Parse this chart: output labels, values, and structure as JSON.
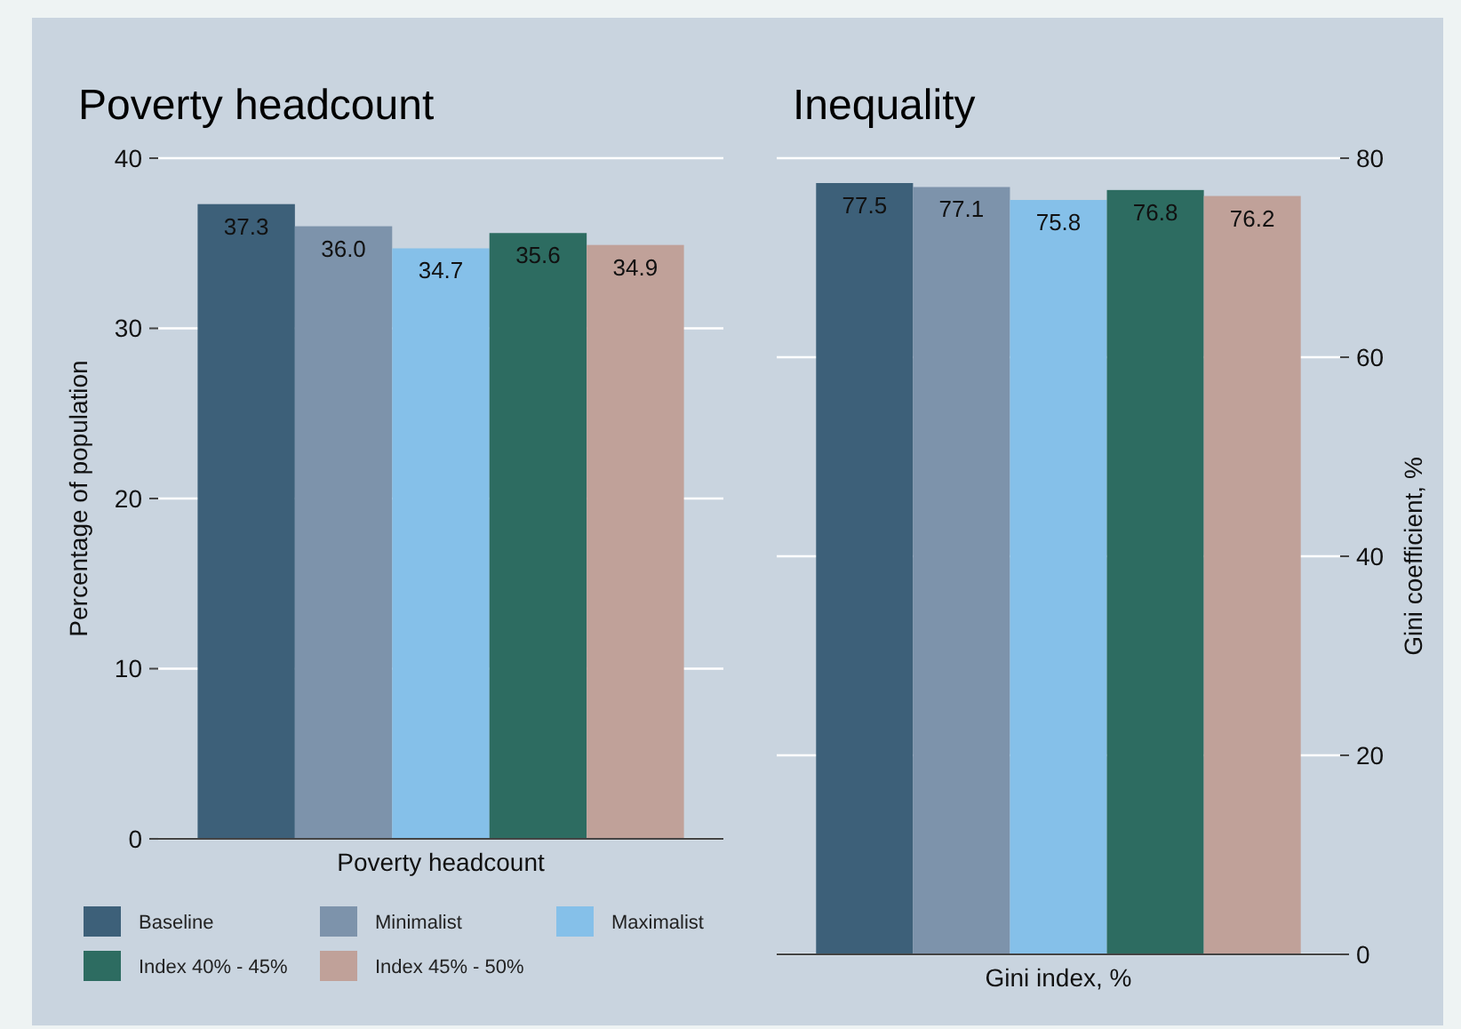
{
  "chart_data": [
    {
      "type": "bar",
      "title": "Poverty headcount",
      "xlabel": "Poverty headcount",
      "ylabel": "Percentage of population",
      "categories": [
        null
      ],
      "series": [
        {
          "name": "Baseline",
          "color": "#3d6079",
          "values": [
            37.3
          ],
          "value_labels": [
            "37.3"
          ]
        },
        {
          "name": "Minimalist",
          "color": "#7d93ab",
          "values": [
            36.0
          ],
          "value_labels": [
            "36.0"
          ]
        },
        {
          "name": "Maximalist",
          "color": "#85c0e9",
          "values": [
            34.7
          ],
          "value_labels": [
            "34.7"
          ]
        },
        {
          "name": "Index 40% - 45%",
          "color": "#2d6c61",
          "values": [
            35.6
          ],
          "value_labels": [
            "35.6"
          ]
        },
        {
          "name": "Index 45% - 50%",
          "color": "#c0a199",
          "values": [
            34.9
          ],
          "value_labels": [
            "34.9"
          ]
        }
      ],
      "ylim": [
        0,
        40
      ],
      "yticks": [
        0,
        10,
        20,
        30,
        40
      ],
      "grid": "y",
      "legend": "bottom"
    },
    {
      "type": "bar",
      "title": "Inequality",
      "xlabel": "Gini index, %",
      "ylabel": "Gini coefficient, %",
      "categories": [
        null
      ],
      "series": [
        {
          "color": "#3d6079",
          "values": [
            77.5
          ],
          "value_labels": [
            "77.5"
          ]
        },
        {
          "color": "#7d93ab",
          "values": [
            77.1
          ],
          "value_labels": [
            "77.1"
          ]
        },
        {
          "color": "#85c0e9",
          "values": [
            75.8
          ],
          "value_labels": [
            "75.8"
          ]
        },
        {
          "color": "#2d6c61",
          "values": [
            76.8
          ],
          "value_labels": [
            "76.8"
          ]
        },
        {
          "color": "#c0a199",
          "values": [
            76.2
          ],
          "value_labels": [
            "76.2"
          ]
        }
      ],
      "ylim": [
        0,
        80
      ],
      "yticks": [
        0,
        20,
        40,
        60,
        80
      ],
      "grid": "y"
    }
  ]
}
